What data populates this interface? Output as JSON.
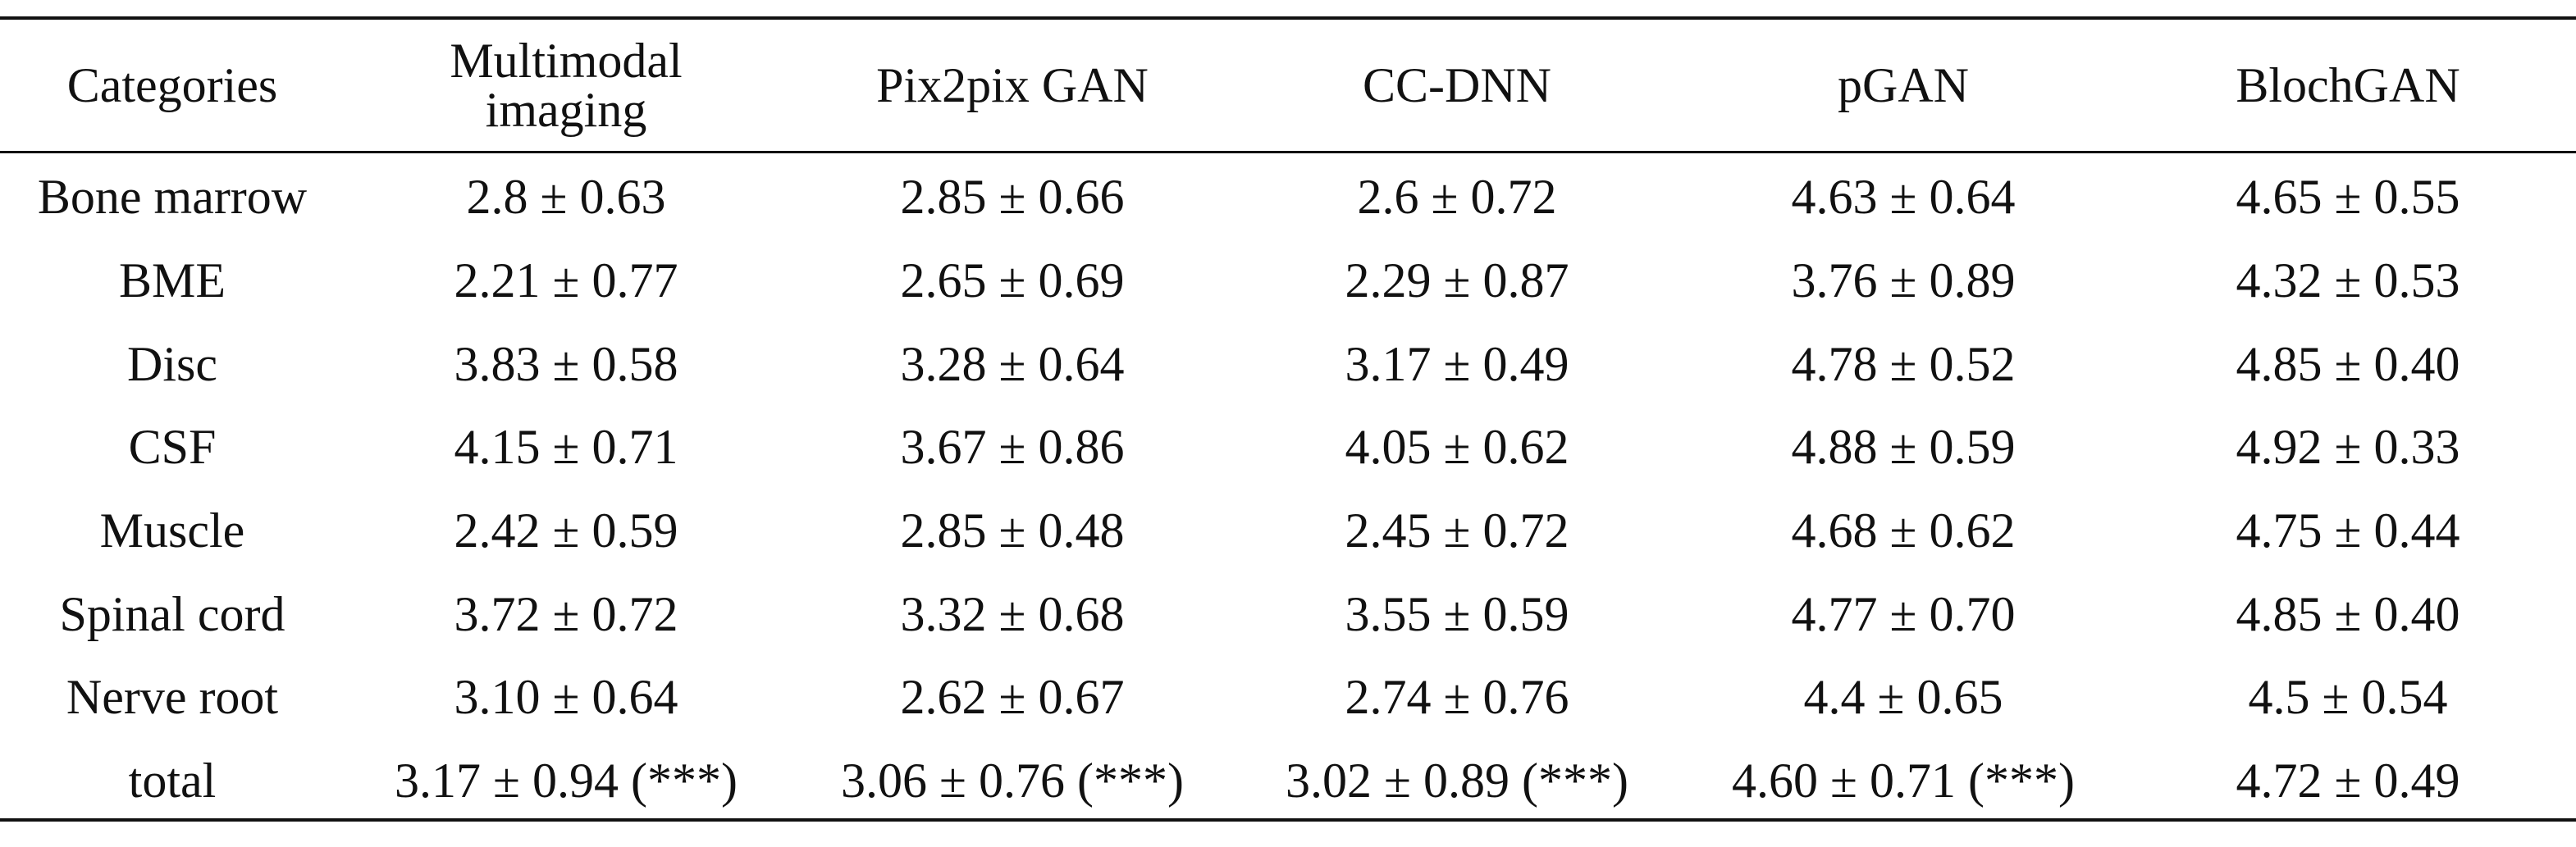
{
  "table": {
    "header": [
      "Categories",
      "Multimodal imaging",
      "Pix2pix GAN",
      "CC-DNN",
      "pGAN",
      "BlochGAN"
    ],
    "rows": [
      [
        "Bone marrow",
        "2.8 ± 0.63",
        "2.85 ± 0.66",
        "2.6 ± 0.72",
        "4.63 ± 0.64",
        "4.65 ± 0.55"
      ],
      [
        "BME",
        "2.21 ± 0.77",
        "2.65 ± 0.69",
        "2.29 ± 0.87",
        "3.76 ± 0.89",
        "4.32 ± 0.53"
      ],
      [
        "Disc",
        "3.83 ± 0.58",
        "3.28 ± 0.64",
        "3.17 ± 0.49",
        "4.78 ± 0.52",
        "4.85 ± 0.40"
      ],
      [
        "CSF",
        "4.15 ± 0.71",
        "3.67 ± 0.86",
        "4.05 ± 0.62",
        "4.88 ± 0.59",
        "4.92 ± 0.33"
      ],
      [
        "Muscle",
        "2.42 ± 0.59",
        "2.85 ± 0.48",
        "2.45 ± 0.72",
        "4.68 ± 0.62",
        "4.75 ± 0.44"
      ],
      [
        "Spinal cord",
        "3.72 ± 0.72",
        "3.32 ± 0.68",
        "3.55 ± 0.59",
        "4.77 ± 0.70",
        "4.85 ± 0.40"
      ],
      [
        "Nerve root",
        "3.10 ± 0.64",
        "2.62 ± 0.67",
        "2.74 ± 0.76",
        "4.4 ± 0.65",
        "4.5 ± 0.54"
      ],
      [
        "total",
        "3.17 ± 0.94 (***)",
        "3.06 ± 0.76 (***)",
        "3.02 ± 0.89 (***)",
        "4.60 ± 0.71 (***)",
        "4.72 ± 0.49"
      ]
    ]
  }
}
